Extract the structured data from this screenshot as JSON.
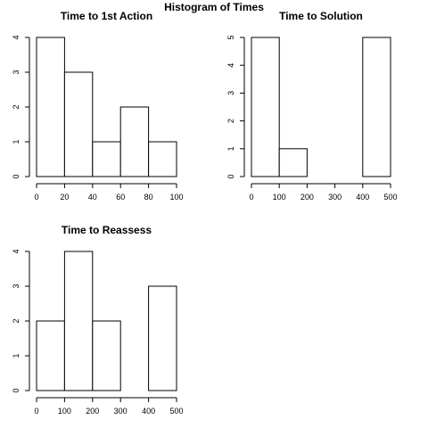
{
  "title": "Histogram of Times",
  "chart_data": [
    {
      "type": "bar",
      "title": "Time to 1st Action",
      "xlabel": "",
      "ylabel": "",
      "bins": [
        [
          0,
          20
        ],
        [
          20,
          40
        ],
        [
          40,
          60
        ],
        [
          60,
          80
        ],
        [
          80,
          100
        ]
      ],
      "values": [
        4,
        3,
        1,
        2,
        1
      ],
      "xlim": [
        0,
        100
      ],
      "ylim": [
        0,
        4
      ],
      "xticks": [
        "0",
        "20",
        "40",
        "60",
        "80",
        "100"
      ],
      "yticks": [
        "0",
        "1",
        "2",
        "3",
        "4"
      ],
      "grid": false
    },
    {
      "type": "bar",
      "title": "Time to Solution",
      "xlabel": "",
      "ylabel": "",
      "bins": [
        [
          0,
          100
        ],
        [
          100,
          200
        ],
        [
          200,
          300
        ],
        [
          300,
          400
        ],
        [
          400,
          500
        ]
      ],
      "values": [
        5,
        1,
        0,
        0,
        5
      ],
      "xlim": [
        0,
        500
      ],
      "ylim": [
        0,
        5
      ],
      "xticks": [
        "0",
        "100",
        "200",
        "300",
        "400",
        "500"
      ],
      "yticks": [
        "0",
        "1",
        "2",
        "3",
        "4",
        "5"
      ],
      "grid": false
    },
    {
      "type": "bar",
      "title": "Time to Reassess",
      "xlabel": "",
      "ylabel": "",
      "bins": [
        [
          0,
          100
        ],
        [
          100,
          200
        ],
        [
          200,
          300
        ],
        [
          300,
          400
        ],
        [
          400,
          500
        ]
      ],
      "values": [
        2,
        4,
        2,
        0,
        3
      ],
      "xlim": [
        0,
        500
      ],
      "ylim": [
        0,
        4
      ],
      "xticks": [
        "0",
        "100",
        "200",
        "300",
        "400",
        "500"
      ],
      "yticks": [
        "0",
        "1",
        "2",
        "3",
        "4"
      ],
      "grid": false
    }
  ]
}
